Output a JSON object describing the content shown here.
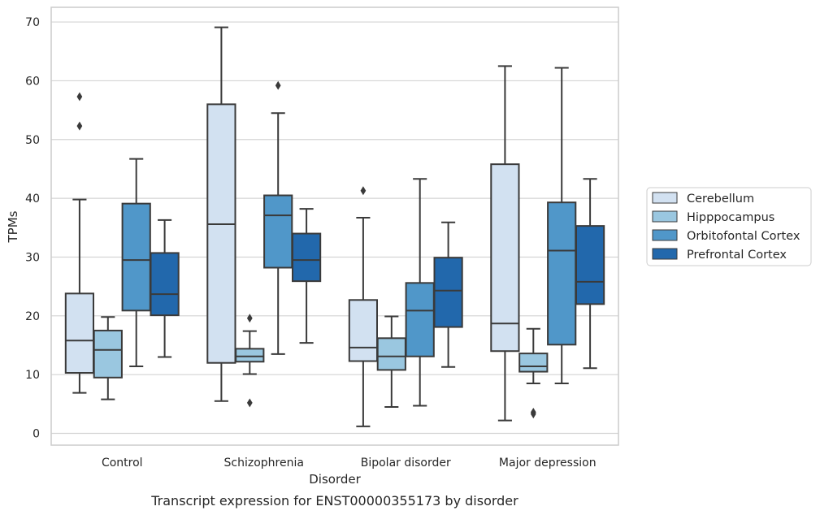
{
  "chart_data": {
    "type": "boxplot",
    "caption": "Transcript expression for ENST00000355173 by disorder",
    "xlabel": "Disorder",
    "ylabel": "TPMs",
    "ylim": [
      -2,
      72.5
    ],
    "yticks": [
      0,
      10,
      20,
      30,
      40,
      50,
      60,
      70
    ],
    "grid": "horizontal",
    "legend_position": "right",
    "categories": [
      "Control",
      "Schizophrenia",
      "Bipolar disorder",
      "Major depression"
    ],
    "series": [
      {
        "name": "Cerebellum",
        "color": "#d2e1f1",
        "boxes": [
          {
            "whisker_low": 6.9,
            "q1": 10.3,
            "median": 15.8,
            "q3": 23.8,
            "whisker_high": 39.8,
            "outliers": [
              52.3,
              57.3
            ]
          },
          {
            "whisker_low": 5.5,
            "q1": 12.0,
            "median": 35.6,
            "q3": 56.0,
            "whisker_high": 69.1,
            "outliers": []
          },
          {
            "whisker_low": 1.2,
            "q1": 12.3,
            "median": 14.6,
            "q3": 22.7,
            "whisker_high": 36.7,
            "outliers": [
              41.3
            ]
          },
          {
            "whisker_low": 2.2,
            "q1": 14.0,
            "median": 18.7,
            "q3": 45.8,
            "whisker_high": 62.5,
            "outliers": []
          }
        ]
      },
      {
        "name": "Hipppocampus",
        "color": "#9ac7e0",
        "boxes": [
          {
            "whisker_low": 5.8,
            "q1": 9.5,
            "median": 14.2,
            "q3": 17.5,
            "whisker_high": 19.8,
            "outliers": []
          },
          {
            "whisker_low": 10.1,
            "q1": 12.2,
            "median": 13.1,
            "q3": 14.4,
            "whisker_high": 17.4,
            "outliers": [
              19.6,
              5.2
            ]
          },
          {
            "whisker_low": 4.5,
            "q1": 10.8,
            "median": 13.1,
            "q3": 16.2,
            "whisker_high": 19.9,
            "outliers": []
          },
          {
            "whisker_low": 8.5,
            "q1": 10.5,
            "median": 11.4,
            "q3": 13.6,
            "whisker_high": 17.8,
            "outliers": [
              3.3,
              3.6
            ]
          }
        ]
      },
      {
        "name": "Orbitofontal Cortex",
        "color": "#5097c9",
        "boxes": [
          {
            "whisker_low": 11.4,
            "q1": 20.9,
            "median": 29.5,
            "q3": 39.1,
            "whisker_high": 46.7,
            "outliers": []
          },
          {
            "whisker_low": 13.5,
            "q1": 28.2,
            "median": 37.1,
            "q3": 40.5,
            "whisker_high": 54.5,
            "outliers": [
              59.2
            ]
          },
          {
            "whisker_low": 4.7,
            "q1": 13.1,
            "median": 20.9,
            "q3": 25.6,
            "whisker_high": 43.3,
            "outliers": []
          },
          {
            "whisker_low": 8.5,
            "q1": 15.1,
            "median": 31.1,
            "q3": 39.3,
            "whisker_high": 62.2,
            "outliers": []
          }
        ]
      },
      {
        "name": "Prefrontal Cortex",
        "color": "#2268ac",
        "boxes": [
          {
            "whisker_low": 13.0,
            "q1": 20.1,
            "median": 23.7,
            "q3": 30.7,
            "whisker_high": 36.3,
            "outliers": []
          },
          {
            "whisker_low": 15.4,
            "q1": 25.9,
            "median": 29.5,
            "q3": 34.0,
            "whisker_high": 38.2,
            "outliers": []
          },
          {
            "whisker_low": 11.3,
            "q1": 18.1,
            "median": 24.3,
            "q3": 29.9,
            "whisker_high": 35.9,
            "outliers": []
          },
          {
            "whisker_low": 11.1,
            "q1": 22.0,
            "median": 25.8,
            "q3": 35.3,
            "whisker_high": 43.3,
            "outliers": []
          }
        ]
      }
    ]
  }
}
